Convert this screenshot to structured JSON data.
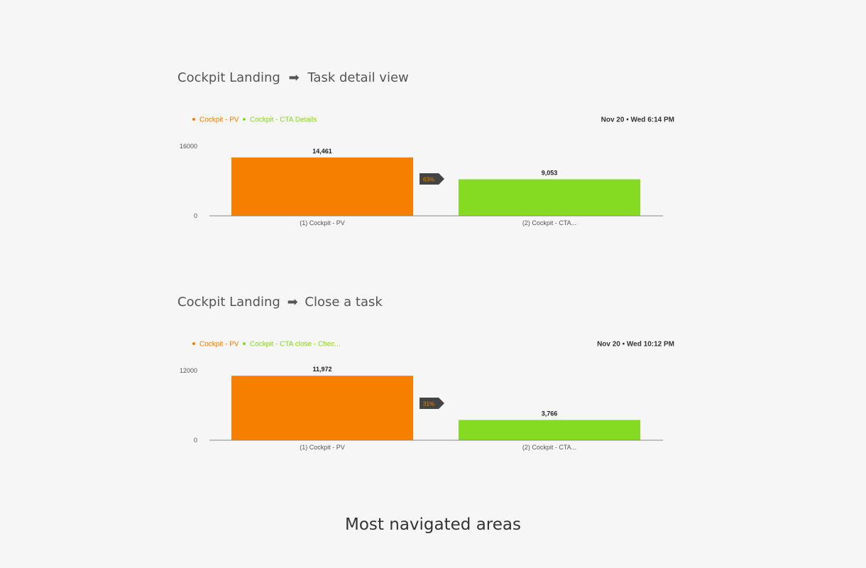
{
  "sections": [
    {
      "title_from": "Cockpit Landing",
      "arrow": "➡",
      "title_to": "Task detail view"
    },
    {
      "title_from": "Cockpit Landing",
      "arrow": "➡",
      "title_to": "Close a task"
    }
  ],
  "footer": {
    "title": "Most navigated areas"
  },
  "colors": {
    "series1": "#f77f00",
    "series2": "#84db22",
    "badge_bg": "#444444",
    "axis": "#888888",
    "text": "#666666"
  },
  "chart_data": [
    {
      "type": "bar",
      "legend": [
        "Cockpit - PV",
        "Cockpit - CTA Details"
      ],
      "timestamp": "Nov 20 • Wed 6:14 PM",
      "categories": [
        "(1) Cockpit - PV",
        "(2) Cockpit - CTA..."
      ],
      "values": [
        14461,
        9053
      ],
      "value_labels": [
        "14,461",
        "9,053"
      ],
      "conversion_label": "63%",
      "y_ticks": [
        "16000",
        "0"
      ],
      "ylim": [
        0,
        16000
      ]
    },
    {
      "type": "bar",
      "legend": [
        "Cockpit - PV",
        "Cockpit - CTA close - Chec..."
      ],
      "timestamp": "Nov 20 • Wed 10:12 PM",
      "categories": [
        "(1) Cockpit - PV",
        "(2) Cockpit - CTA..."
      ],
      "values": [
        11972,
        3766
      ],
      "value_labels": [
        "11,972",
        "3,766"
      ],
      "conversion_label": "31%",
      "y_ticks": [
        "12000",
        "0"
      ],
      "ylim": [
        0,
        12000
      ]
    }
  ]
}
